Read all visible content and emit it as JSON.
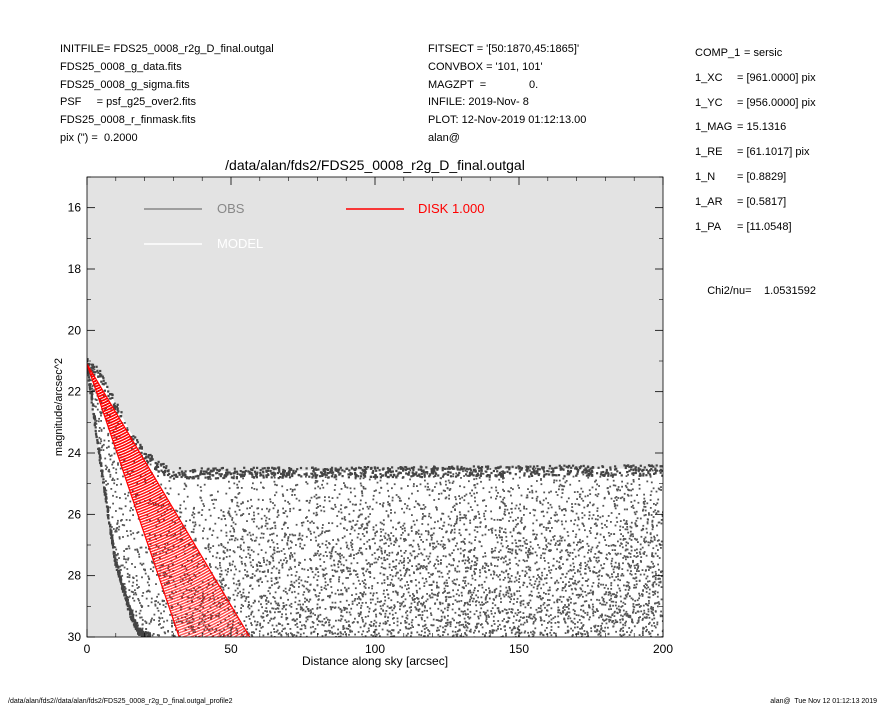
{
  "header_left": [
    "INITFILE= FDS25_0008_r2g_D_final.outgal",
    "FDS25_0008_g_data.fits",
    "FDS25_0008_g_sigma.fits",
    "PSF     = psf_g25_over2.fits",
    "FDS25_0008_r_finmask.fits",
    "pix (\") =  0.2000"
  ],
  "header_mid": [
    "FITSECT = '[50:1870,45:1865]'",
    "CONVBOX = '101, 101'",
    "MAGZPT  =              0.",
    "INFILE: 2019-Nov- 8",
    "PLOT: 12-Nov-2019 01:12:13.00",
    "alan@"
  ],
  "params": [
    {
      "key": "COMP_1",
      "value": "= sersic"
    },
    {
      "key": "1_XC",
      "value": "= [961.0000] pix"
    },
    {
      "key": "1_YC",
      "value": "= [956.0000] pix"
    },
    {
      "key": "1_MAG",
      "value": "= 15.1316"
    },
    {
      "key": "1_RE",
      "value": "= [61.1017] pix"
    },
    {
      "key": "1_N",
      "value": "= [0.8829]"
    },
    {
      "key": "1_AR",
      "value": "= [0.5817]"
    },
    {
      "key": "1_PA",
      "value": "= [11.0548]"
    }
  ],
  "chi2": {
    "label": "Chi2/nu=",
    "value": "1.0531592"
  },
  "footer_left": "/data/alan/fds2//data/alan/fds2/FDS25_0008_r2g_D_final.outgal_profile2",
  "footer_right": "alan@  Tue Nov 12 01:12:13 2019",
  "colors": {
    "plot_bg": "#e3e3e3",
    "obs": "#555555",
    "obs_legend": "#888888",
    "model": "#ffffff",
    "disk": "#ff0000"
  },
  "chart_data": {
    "type": "scatter",
    "title": "/data/alan/fds2/FDS25_0008_r2g_D_final.outgal",
    "xlabel": "Distance along sky [arcsec]",
    "ylabel": "magnitude/arcsec^2",
    "xlim": [
      0,
      200
    ],
    "ylim": [
      30,
      15
    ],
    "y_inverted": true,
    "xticks": [
      0,
      50,
      100,
      150,
      200
    ],
    "yticks": [
      16,
      18,
      20,
      22,
      24,
      26,
      28,
      30
    ],
    "grid": false,
    "legend_placement": "top",
    "legend": [
      {
        "name": "OBS",
        "color": "#888888"
      },
      {
        "name": "DISK  1.000",
        "color": "#ff0000"
      },
      {
        "name": "MODEL",
        "color": "#ffffff"
      }
    ],
    "series": [
      {
        "name": "OBS",
        "color": "#555555",
        "upper_envelope": {
          "x": [
            0,
            2,
            4,
            6,
            10,
            15,
            20,
            25,
            30,
            200
          ],
          "y": [
            21.0,
            21.2,
            21.3,
            21.7,
            22.4,
            23.3,
            24.0,
            24.4,
            24.6,
            24.5
          ]
        },
        "lower_envelope": {
          "x": [
            0,
            5,
            10,
            15,
            18,
            20,
            200
          ],
          "y": [
            21.1,
            24.5,
            27.6,
            29.2,
            29.8,
            30.0,
            30.0
          ]
        }
      },
      {
        "name": "DISK  1.000",
        "color": "#ff0000",
        "upper_envelope": {
          "x": [
            0,
            56.5
          ],
          "y": [
            21.1,
            30.0
          ]
        },
        "lower_envelope": {
          "x": [
            0,
            32
          ],
          "y": [
            21.1,
            30.0
          ]
        }
      }
    ]
  }
}
